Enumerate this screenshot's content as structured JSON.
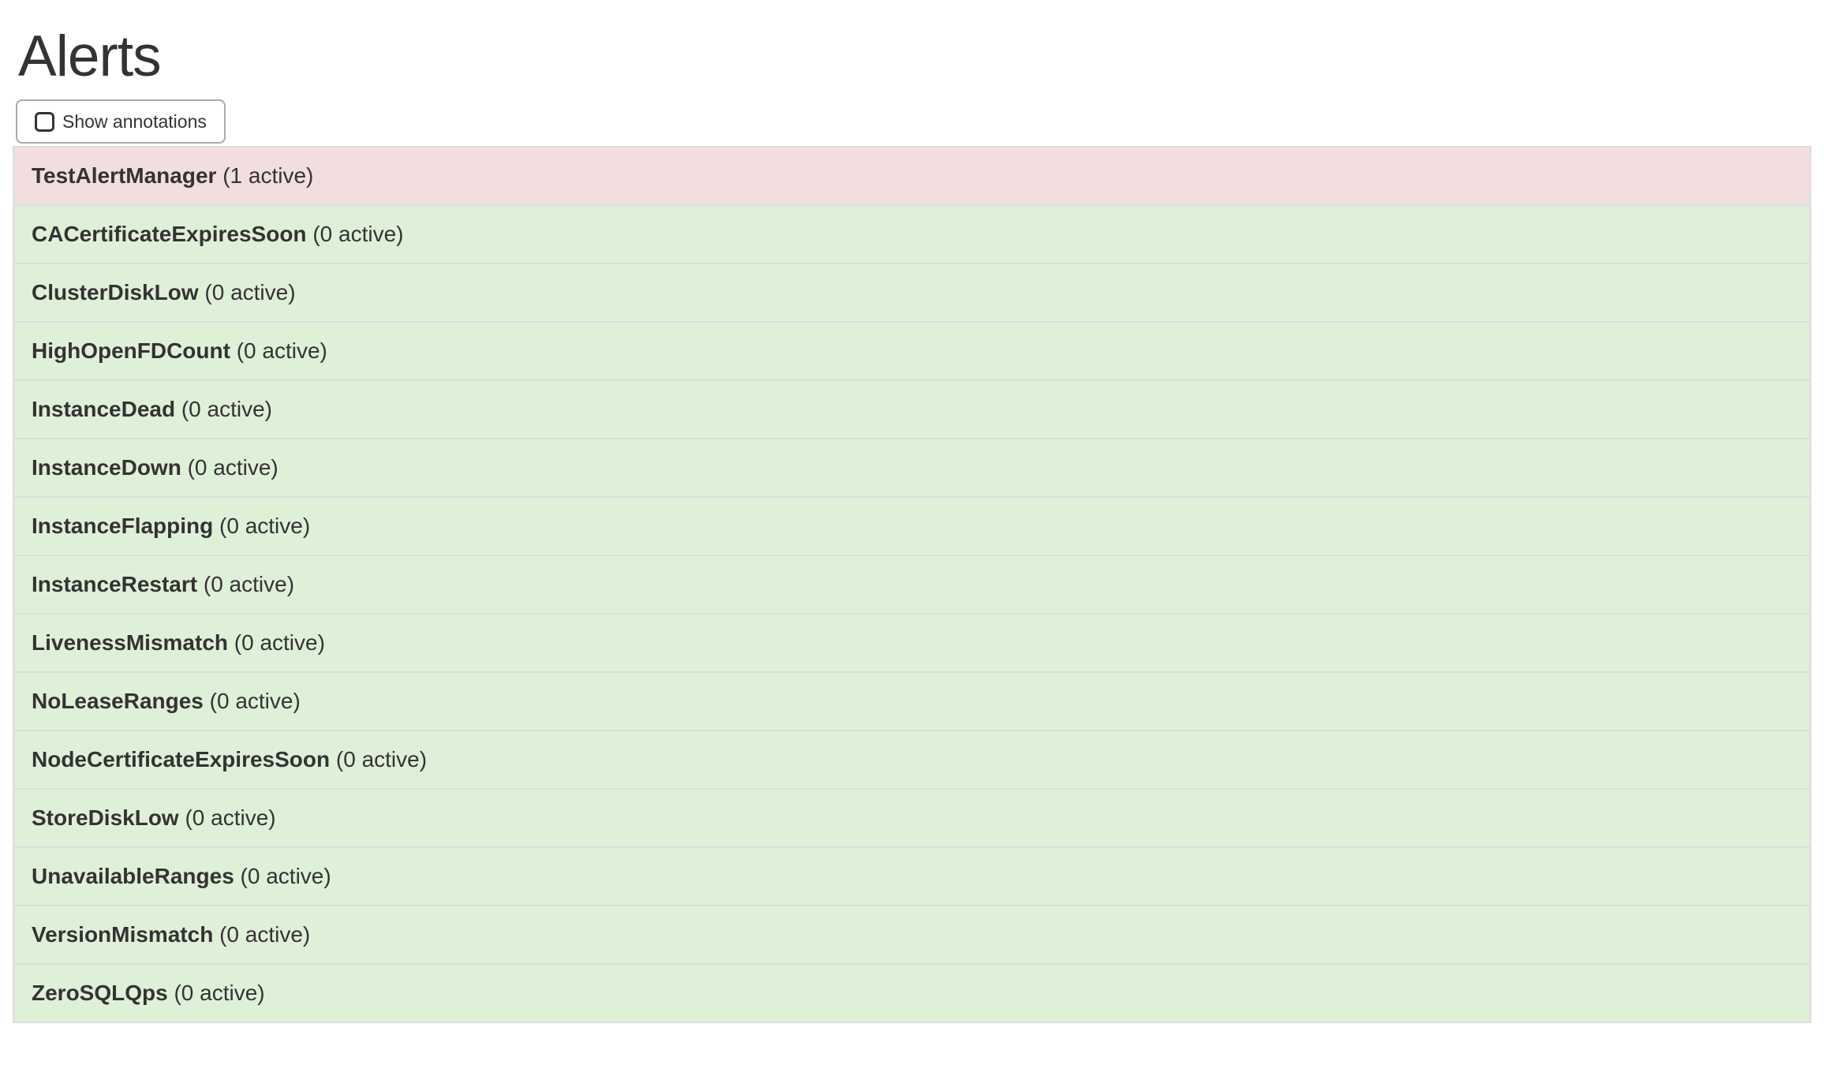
{
  "page": {
    "title": "Alerts"
  },
  "toolbar": {
    "show_annotations_label": "Show annotations",
    "checkbox_checked": false
  },
  "alerts": [
    {
      "name": "TestAlertManager",
      "active_count": 1,
      "active_label": "(1 active)",
      "state": "firing"
    },
    {
      "name": "CACertificateExpiresSoon",
      "active_count": 0,
      "active_label": "(0 active)",
      "state": "inactive"
    },
    {
      "name": "ClusterDiskLow",
      "active_count": 0,
      "active_label": "(0 active)",
      "state": "inactive"
    },
    {
      "name": "HighOpenFDCount",
      "active_count": 0,
      "active_label": "(0 active)",
      "state": "inactive"
    },
    {
      "name": "InstanceDead",
      "active_count": 0,
      "active_label": "(0 active)",
      "state": "inactive"
    },
    {
      "name": "InstanceDown",
      "active_count": 0,
      "active_label": "(0 active)",
      "state": "inactive"
    },
    {
      "name": "InstanceFlapping",
      "active_count": 0,
      "active_label": "(0 active)",
      "state": "inactive"
    },
    {
      "name": "InstanceRestart",
      "active_count": 0,
      "active_label": "(0 active)",
      "state": "inactive"
    },
    {
      "name": "LivenessMismatch",
      "active_count": 0,
      "active_label": "(0 active)",
      "state": "inactive"
    },
    {
      "name": "NoLeaseRanges",
      "active_count": 0,
      "active_label": "(0 active)",
      "state": "inactive"
    },
    {
      "name": "NodeCertificateExpiresSoon",
      "active_count": 0,
      "active_label": "(0 active)",
      "state": "inactive"
    },
    {
      "name": "StoreDiskLow",
      "active_count": 0,
      "active_label": "(0 active)",
      "state": "inactive"
    },
    {
      "name": "UnavailableRanges",
      "active_count": 0,
      "active_label": "(0 active)",
      "state": "inactive"
    },
    {
      "name": "VersionMismatch",
      "active_count": 0,
      "active_label": "(0 active)",
      "state": "inactive"
    },
    {
      "name": "ZeroSQLQps",
      "active_count": 0,
      "active_label": "(0 active)",
      "state": "inactive"
    }
  ],
  "colors": {
    "firing_bg": "#f2dede",
    "inactive_bg": "#dff0d8",
    "row_border": "#dddddd",
    "text": "#333333",
    "button_border": "#aaaaaa"
  }
}
